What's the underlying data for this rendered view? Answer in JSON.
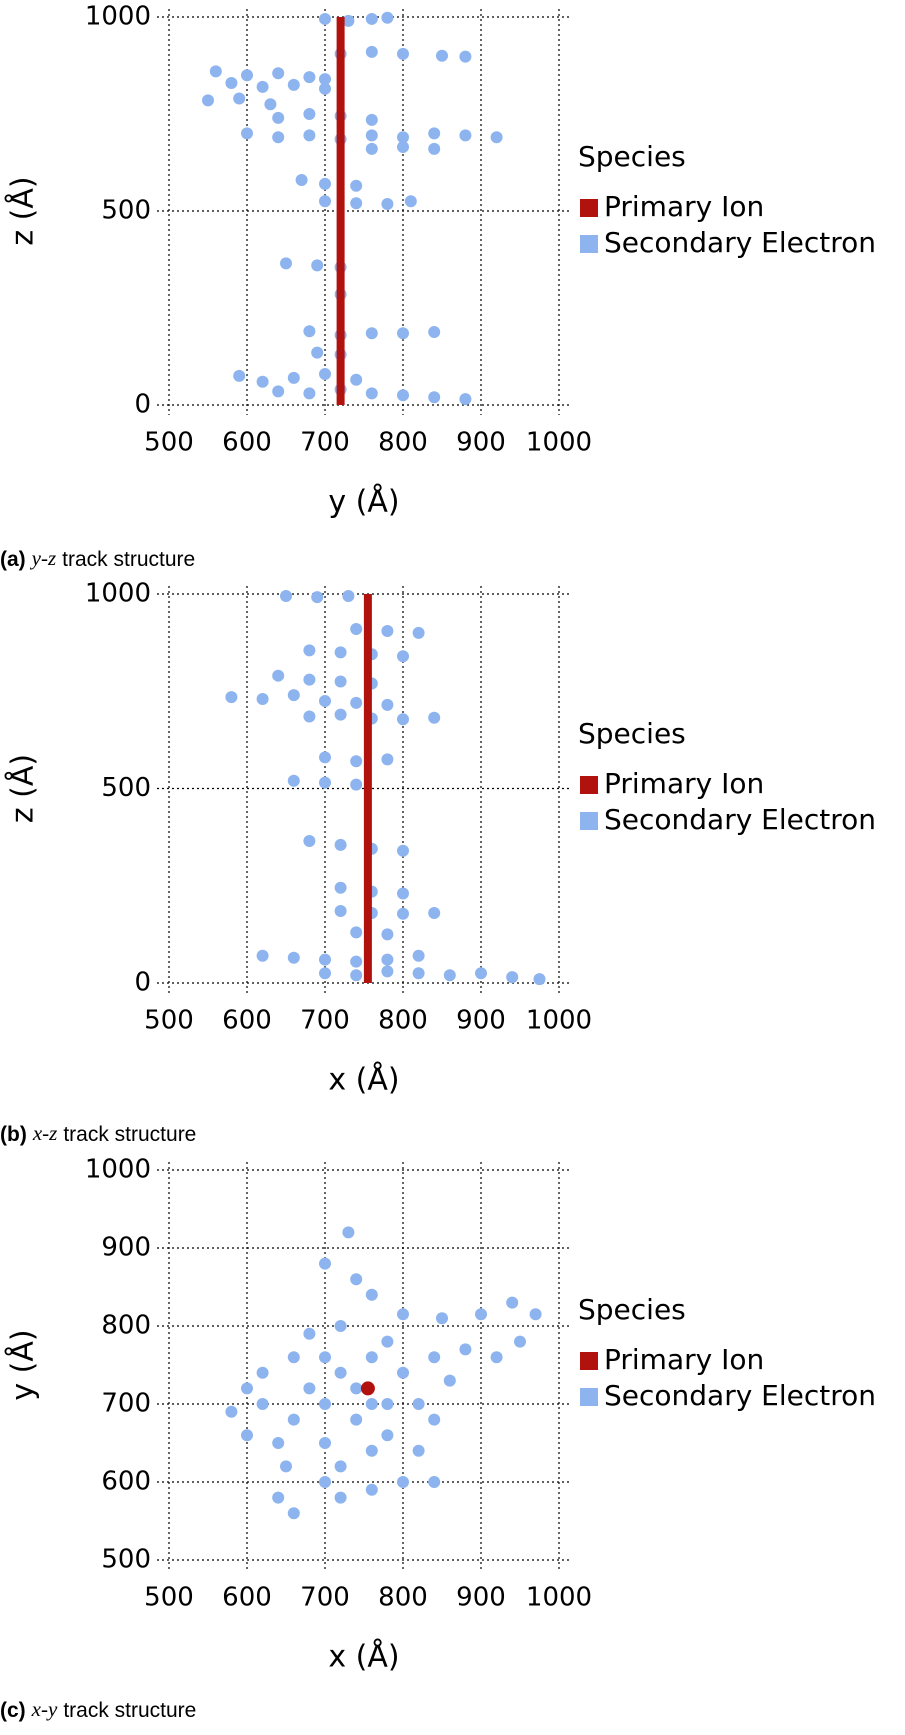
{
  "chart_data": [
    {
      "type": "scatter",
      "xlabel": "y (Å)",
      "ylabel": "z (Å)",
      "legend_title": "Species",
      "caption_label": "(a)",
      "caption_axes": "y-z",
      "caption_text": "track structure",
      "xlim": [
        500,
        1000
      ],
      "ylim": [
        0,
        1000
      ],
      "xticks": [
        500,
        600,
        700,
        800,
        900,
        1000
      ],
      "yticks": [
        0,
        500,
        1000
      ],
      "grid": true,
      "series": [
        {
          "name": "Primary Ion",
          "color": "#b2120e",
          "mode": "line",
          "x": [
            720,
            720
          ],
          "values": [
            0,
            1000
          ]
        },
        {
          "name": "Secondary Electron",
          "color": "#8db4ee",
          "mode": "points",
          "x": [
            700,
            730,
            760,
            780,
            720,
            760,
            800,
            850,
            880,
            560,
            600,
            640,
            680,
            700,
            580,
            620,
            660,
            700,
            550,
            590,
            630,
            640,
            680,
            720,
            760,
            600,
            640,
            680,
            720,
            760,
            800,
            840,
            880,
            920,
            760,
            800,
            840,
            670,
            700,
            740,
            700,
            740,
            780,
            810,
            650,
            690,
            720,
            720,
            680,
            720,
            760,
            800,
            840,
            690,
            720,
            590,
            620,
            660,
            700,
            740,
            640,
            680,
            720,
            760,
            800,
            840,
            880
          ],
          "values": [
            995,
            990,
            995,
            998,
            905,
            910,
            905,
            900,
            898,
            860,
            850,
            855,
            845,
            840,
            830,
            820,
            825,
            815,
            785,
            790,
            775,
            740,
            750,
            745,
            735,
            700,
            690,
            695,
            685,
            695,
            690,
            700,
            695,
            690,
            660,
            665,
            660,
            580,
            570,
            565,
            525,
            520,
            518,
            525,
            365,
            360,
            355,
            285,
            190,
            180,
            185,
            185,
            188,
            135,
            130,
            75,
            60,
            70,
            80,
            65,
            35,
            30,
            40,
            30,
            25,
            20,
            15
          ]
        }
      ]
    },
    {
      "type": "scatter",
      "xlabel": "x (Å)",
      "ylabel": "z (Å)",
      "legend_title": "Species",
      "caption_label": "(b)",
      "caption_axes": "x-z",
      "caption_text": "track structure",
      "xlim": [
        500,
        1000
      ],
      "ylim": [
        0,
        1000
      ],
      "xticks": [
        500,
        600,
        700,
        800,
        900,
        1000
      ],
      "yticks": [
        0,
        500,
        1000
      ],
      "grid": true,
      "series": [
        {
          "name": "Primary Ion",
          "color": "#b2120e",
          "mode": "line",
          "x": [
            755,
            755
          ],
          "values": [
            0,
            1000
          ]
        },
        {
          "name": "Secondary Electron",
          "color": "#8db4ee",
          "mode": "points",
          "x": [
            650,
            690,
            730,
            740,
            780,
            820,
            680,
            720,
            760,
            800,
            640,
            680,
            720,
            760,
            580,
            620,
            660,
            700,
            740,
            780,
            680,
            720,
            760,
            800,
            840,
            700,
            740,
            780,
            660,
            700,
            740,
            680,
            720,
            760,
            800,
            720,
            760,
            800,
            720,
            760,
            800,
            840,
            740,
            780,
            620,
            660,
            700,
            740,
            780,
            820,
            700,
            740,
            780,
            820,
            860,
            900,
            940,
            975
          ],
          "values": [
            995,
            992,
            995,
            910,
            905,
            900,
            855,
            850,
            845,
            840,
            790,
            780,
            775,
            770,
            735,
            730,
            740,
            725,
            720,
            715,
            685,
            690,
            680,
            678,
            682,
            580,
            570,
            575,
            520,
            515,
            510,
            365,
            355,
            345,
            340,
            245,
            235,
            230,
            185,
            180,
            178,
            180,
            130,
            125,
            70,
            65,
            60,
            55,
            60,
            70,
            25,
            20,
            30,
            25,
            20,
            25,
            15,
            10
          ]
        }
      ]
    },
    {
      "type": "scatter",
      "xlabel": "x (Å)",
      "ylabel": "y (Å)",
      "legend_title": "Species",
      "caption_label": "(c)",
      "caption_axes": "x-y",
      "caption_text": "track structure",
      "xlim": [
        500,
        1000
      ],
      "ylim": [
        500,
        1000
      ],
      "xticks": [
        500,
        600,
        700,
        800,
        900,
        1000
      ],
      "yticks": [
        500,
        600,
        700,
        800,
        900,
        1000
      ],
      "grid": true,
      "series": [
        {
          "name": "Primary Ion",
          "color": "#b2120e",
          "mode": "points",
          "x": [
            755
          ],
          "values": [
            720
          ]
        },
        {
          "name": "Secondary Electron",
          "color": "#8db4ee",
          "mode": "points",
          "x": [
            730,
            700,
            740,
            760,
            800,
            850,
            900,
            940,
            970,
            950,
            920,
            880,
            840,
            780,
            720,
            680,
            660,
            620,
            600,
            580,
            600,
            640,
            650,
            640,
            660,
            700,
            720,
            760,
            800,
            840,
            820,
            780,
            740,
            700,
            680,
            720,
            760,
            800,
            820,
            780,
            740,
            700,
            760,
            840,
            860,
            620,
            720,
            760,
            700,
            660
          ],
          "values": [
            920,
            880,
            860,
            840,
            815,
            810,
            815,
            830,
            815,
            780,
            760,
            770,
            760,
            780,
            800,
            790,
            760,
            740,
            720,
            690,
            660,
            650,
            620,
            580,
            560,
            600,
            620,
            590,
            600,
            600,
            640,
            660,
            680,
            700,
            720,
            740,
            760,
            740,
            700,
            700,
            720,
            650,
            640,
            680,
            730,
            700,
            580,
            700,
            760,
            680
          ]
        }
      ]
    }
  ]
}
